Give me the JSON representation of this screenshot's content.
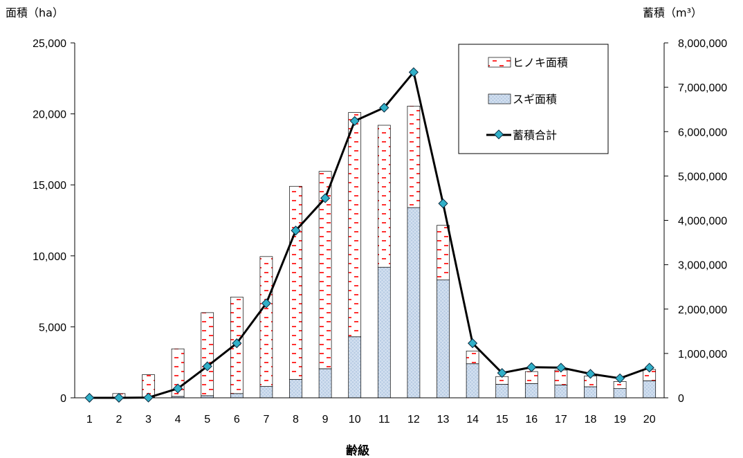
{
  "chart_data": {
    "type": "bar",
    "title": "",
    "xlabel": "齢級",
    "ylabel": "面積（ha）",
    "y2label": "蓄積（m³）",
    "categories": [
      "1",
      "2",
      "3",
      "4",
      "5",
      "6",
      "7",
      "8",
      "9",
      "10",
      "11",
      "12",
      "13",
      "14",
      "15",
      "16",
      "17",
      "18",
      "19",
      "20"
    ],
    "ylim": [
      0,
      25000
    ],
    "y2lim": [
      0,
      8000000
    ],
    "yticks": [
      "0",
      "5,000",
      "10,000",
      "15,000",
      "20,000",
      "25,000"
    ],
    "y2ticks": [
      "0",
      "1,000,000",
      "2,000,000",
      "3,000,000",
      "4,000,000",
      "5,000,000",
      "6,000,000",
      "7,000,000",
      "8,000,000"
    ],
    "series": [
      {
        "name": "スギ面積",
        "kind": "bar-stack",
        "color": "#b8cce4",
        "values": [
          0,
          50,
          30,
          100,
          150,
          300,
          800,
          1300,
          2050,
          4300,
          9200,
          13400,
          8300,
          2400,
          950,
          1000,
          900,
          780,
          650,
          1200
        ]
      },
      {
        "name": "ヒノキ面積",
        "kind": "bar-stack",
        "color": "#ff4040",
        "values": [
          0,
          250,
          1600,
          3350,
          5850,
          6800,
          9150,
          13600,
          13900,
          15800,
          10000,
          7150,
          3850,
          900,
          550,
          850,
          1050,
          750,
          500,
          800
        ]
      },
      {
        "name": "蓄積合計",
        "kind": "line",
        "axis": "y2",
        "color": "#000000",
        "values": [
          0,
          0,
          5000,
          210000,
          710000,
          1230000,
          2130000,
          3770000,
          4500000,
          6240000,
          6540000,
          7340000,
          4380000,
          1230000,
          560000,
          690000,
          680000,
          540000,
          440000,
          680000
        ]
      }
    ],
    "legend": {
      "position": "top-right",
      "items": [
        "ヒノキ面積",
        "スギ面積",
        "蓄積合計"
      ]
    },
    "grid": false
  }
}
